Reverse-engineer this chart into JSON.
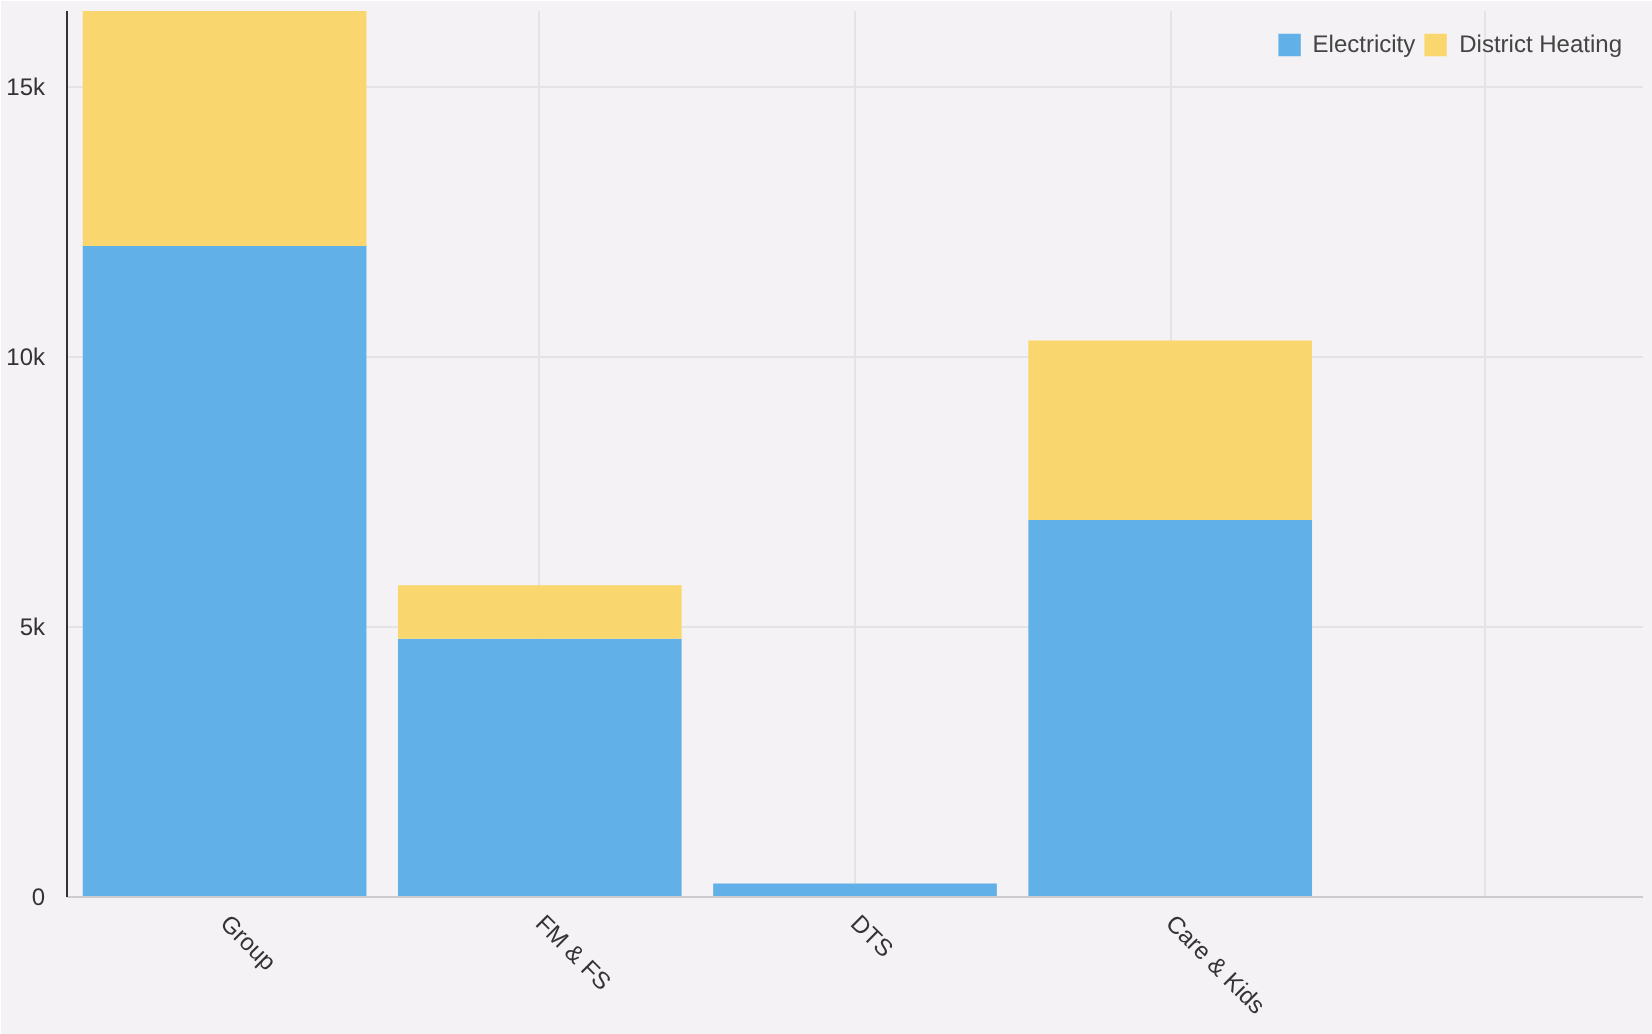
{
  "chart_data": {
    "type": "bar",
    "stacked": true,
    "categories": [
      "Group",
      "FM & FS",
      "DTS",
      "Care & Kids",
      null
    ],
    "series": [
      {
        "name": "Electricity",
        "color": "#62b0e8",
        "values": [
          12050,
          4780,
          250,
          6980,
          0
        ]
      },
      {
        "name": "District Heating",
        "color": "#fad66e",
        "values": [
          4350,
          990,
          0,
          3320,
          0
        ]
      }
    ],
    "ylim": [
      0,
      16400
    ],
    "yticks": [
      0,
      {
        "value": 5000,
        "label": "5k"
      },
      {
        "value": 10000,
        "label": "10k"
      },
      {
        "value": 15000,
        "label": "15k"
      }
    ],
    "grid": true,
    "legend": "top right"
  }
}
